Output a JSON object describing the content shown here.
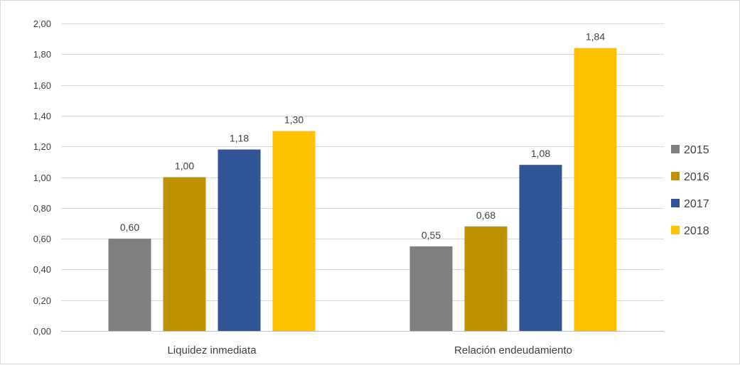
{
  "chart_data": {
    "type": "bar",
    "title": "",
    "xlabel": "",
    "ylabel": "",
    "categories": [
      "Liquidez inmediata",
      "Relación endeudamiento"
    ],
    "series": [
      {
        "name": "2015",
        "values": [
          0.6,
          0.55
        ],
        "labels": [
          "0,60",
          "0,55"
        ],
        "color": "#7f7f7f"
      },
      {
        "name": "2016",
        "values": [
          1.0,
          0.68
        ],
        "labels": [
          "1,00",
          "0,68"
        ],
        "color": "#bf9000"
      },
      {
        "name": "2017",
        "values": [
          1.18,
          1.08
        ],
        "labels": [
          "1,18",
          "1,08"
        ],
        "color": "#2f5597"
      },
      {
        "name": "2018",
        "values": [
          1.3,
          1.84
        ],
        "labels": [
          "1,30",
          "1,84"
        ],
        "color": "#ffc000"
      }
    ],
    "ylim": [
      0,
      2.0
    ],
    "yticks": [
      0,
      0.2,
      0.4,
      0.6,
      0.8,
      1.0,
      1.2,
      1.4,
      1.6,
      1.8,
      2.0
    ],
    "ytick_labels": [
      "0,00",
      "0,20",
      "0,40",
      "0,60",
      "0,80",
      "1,00",
      "1,20",
      "1,40",
      "1,60",
      "1,80",
      "2,00"
    ],
    "grid": true,
    "legend_position": "right",
    "gridline_color": "#d9d9d9",
    "axis_line_color": "#bfbfbf"
  }
}
